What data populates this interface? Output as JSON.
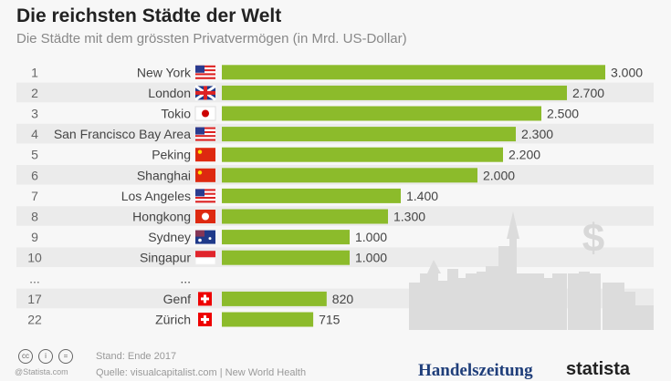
{
  "title": "Die reichsten Städte der Welt",
  "subtitle": "Die Städte mit dem grössten Privatvermögen (in Mrd. US-Dollar)",
  "chart_data": {
    "type": "bar",
    "orientation": "horizontal",
    "title": "Die reichsten Städte der Welt",
    "subtitle": "Die Städte mit dem grössten Privatvermögen (in Mrd. US-Dollar)",
    "xlim": [
      0,
      3000
    ],
    "grid": false,
    "bar_color": "#8cbb2b",
    "rows": [
      {
        "rank": "1",
        "city": "New York",
        "flag": "us-flag",
        "value": 3000,
        "label": "3.000"
      },
      {
        "rank": "2",
        "city": "London",
        "flag": "uk-flag",
        "value": 2700,
        "label": "2.700"
      },
      {
        "rank": "3",
        "city": "Tokio",
        "flag": "japan-flag",
        "value": 2500,
        "label": "2.500"
      },
      {
        "rank": "4",
        "city": "San Francisco Bay Area",
        "flag": "us-flag",
        "value": 2300,
        "label": "2.300"
      },
      {
        "rank": "5",
        "city": "Peking",
        "flag": "china-flag",
        "value": 2200,
        "label": "2.200"
      },
      {
        "rank": "6",
        "city": "Shanghai",
        "flag": "china-flag",
        "value": 2000,
        "label": "2.000"
      },
      {
        "rank": "7",
        "city": "Los Angeles",
        "flag": "us-flag",
        "value": 1400,
        "label": "1.400"
      },
      {
        "rank": "8",
        "city": "Hongkong",
        "flag": "hongkong-flag",
        "value": 1300,
        "label": "1.300"
      },
      {
        "rank": "9",
        "city": "Sydney",
        "flag": "australia-flag",
        "value": 1000,
        "label": "1.000"
      },
      {
        "rank": "10",
        "city": "Singapur",
        "flag": "singapore-flag",
        "value": 1000,
        "label": "1.000"
      },
      {
        "rank": "...",
        "city": "...",
        "flag": null,
        "value": null,
        "label": ""
      },
      {
        "rank": "17",
        "city": "Genf",
        "flag": "swiss-flag",
        "value": 820,
        "label": "820"
      },
      {
        "rank": "22",
        "city": "Zürich",
        "flag": "swiss-flag",
        "value": 715,
        "label": "715"
      }
    ]
  },
  "footer": {
    "stand": "Stand: Ende 2017",
    "quelle": "Quelle: visualcapitalist.com | New World Health",
    "copyright": "@Statista.com",
    "logo_handelszeitung": "Handelszeitung",
    "logo_statista": "statista"
  }
}
